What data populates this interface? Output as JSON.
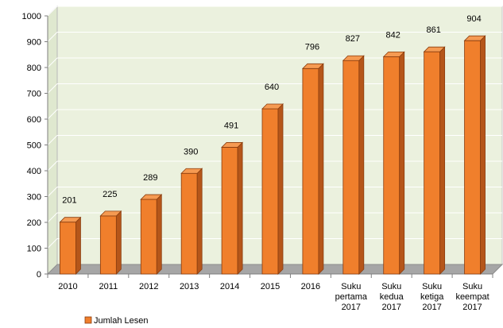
{
  "chart_data": {
    "type": "bar",
    "title": "",
    "xlabel": "",
    "ylabel": "",
    "ylim": [
      0,
      1000
    ],
    "yticks": [
      0,
      100,
      200,
      300,
      400,
      500,
      600,
      700,
      800,
      900,
      1000
    ],
    "categories": [
      [
        "2010"
      ],
      [
        "2011"
      ],
      [
        "2012"
      ],
      [
        "2013"
      ],
      [
        "2014"
      ],
      [
        "2015"
      ],
      [
        "2016"
      ],
      [
        "Suku",
        "pertama",
        "2017"
      ],
      [
        "Suku",
        "kedua",
        "2017"
      ],
      [
        "Suku",
        "ketiga",
        "2017"
      ],
      [
        "Suku",
        "keempat",
        "2017"
      ]
    ],
    "series": [
      {
        "name": "Jumlah Lesen",
        "values": [
          201,
          225,
          289,
          390,
          491,
          640,
          796,
          827,
          842,
          861,
          904
        ],
        "color": "#f07f2c"
      }
    ],
    "plot_background": "#ebf1de",
    "grid": true,
    "legend_position": "bottom-left"
  }
}
